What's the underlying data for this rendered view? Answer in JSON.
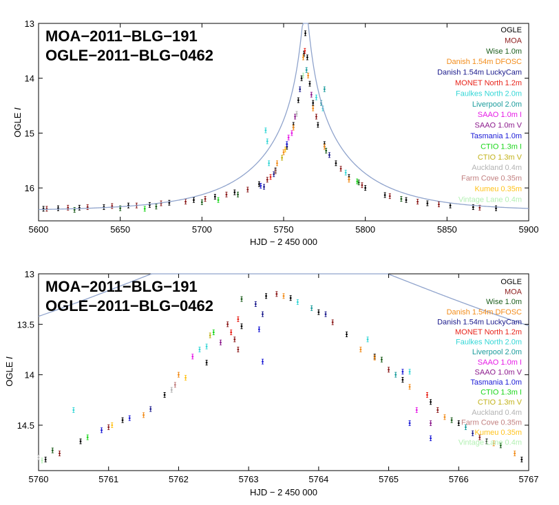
{
  "chart_data": [
    {
      "type": "scatter",
      "title_lines": [
        "MOA−2011−BLG−191",
        "OGLE−2011−BLG−0462"
      ],
      "xlabel": "HJD − 2 450 000",
      "ylabel_prefix": "OGLE ",
      "ylabel_italic": "I",
      "xlim": [
        5600,
        5900
      ],
      "ylim": [
        16.6,
        13.0
      ],
      "y_inverted": true,
      "xticks": [
        5600,
        5650,
        5700,
        5750,
        5800,
        5850,
        5900
      ],
      "xtick_labels": [
        "5600",
        "5650",
        "5700",
        "5750",
        "5800",
        "5850",
        "5900"
      ],
      "yticks": [
        13,
        14,
        15,
        16
      ],
      "ytick_labels": [
        "13",
        "14",
        "15",
        "16"
      ],
      "model": {
        "t0": 5763.3,
        "tE": 61.0,
        "u0": 0.0328,
        "baseline": 16.42,
        "color": "#8fa3cc"
      },
      "series_points": [
        {
          "name": "OGLE",
          "points": [
            [
              5603,
              16.38
            ],
            [
              5612,
              16.37
            ],
            [
              5625,
              16.36
            ],
            [
              5640,
              16.35
            ],
            [
              5655,
              16.32
            ],
            [
              5668,
              16.31
            ],
            [
              5680,
              16.27
            ],
            [
              5695,
              16.22
            ],
            [
              5708,
              16.16
            ],
            [
              5720,
              16.08
            ],
            [
              5735,
              15.93
            ],
            [
              5745,
              15.68
            ],
            [
              5752,
              15.25
            ],
            [
              5756,
              14.85
            ],
            [
              5759,
              14.4
            ],
            [
              5761,
              14.0
            ],
            [
              5762.5,
              13.55
            ],
            [
              5763.3,
              13.18
            ],
            [
              5764.5,
              13.62
            ],
            [
              5766,
              14.1
            ],
            [
              5768,
              14.45
            ],
            [
              5771,
              14.85
            ],
            [
              5775,
              15.2
            ],
            [
              5782,
              15.55
            ],
            [
              5790,
              15.8
            ],
            [
              5800,
              16.0
            ],
            [
              5812,
              16.13
            ],
            [
              5825,
              16.22
            ],
            [
              5838,
              16.28
            ],
            [
              5852,
              16.32
            ],
            [
              5866,
              16.35
            ],
            [
              5880,
              16.37
            ]
          ]
        },
        {
          "name": "MOA",
          "points": [
            [
              5605,
              16.38
            ],
            [
              5618,
              16.36
            ],
            [
              5630,
              16.35
            ],
            [
              5645,
              16.33
            ],
            [
              5660,
              16.32
            ],
            [
              5675,
              16.28
            ],
            [
              5690,
              16.25
            ],
            [
              5702,
              16.2
            ],
            [
              5715,
              16.12
            ],
            [
              5728,
              16.03
            ],
            [
              5740,
              15.85
            ],
            [
              5770,
              14.7
            ],
            [
              5785,
              15.65
            ],
            [
              5798,
              15.95
            ],
            [
              5815,
              16.15
            ],
            [
              5832,
              16.25
            ],
            [
              5845,
              16.3
            ],
            [
              5870,
              16.36
            ]
          ]
        },
        {
          "name": "Wise 1.0m",
          "points": [
            [
              5622,
              16.4
            ],
            [
              5650,
              16.37
            ],
            [
              5672,
              16.34
            ],
            [
              5700,
              16.26
            ],
            [
              5722,
              16.12
            ],
            [
              5776,
              15.32
            ],
            [
              5796,
              15.9
            ],
            [
              5822,
              16.2
            ]
          ]
        },
        {
          "name": "Danish 1.54m DFOSC",
          "points": [
            [
              5746,
              15.55
            ],
            [
              5750,
              15.35
            ],
            [
              5756,
              14.9
            ],
            [
              5762,
              13.62
            ],
            [
              5765,
              13.95
            ],
            [
              5768,
              14.55
            ],
            [
              5775,
              15.25
            ],
            [
              5790,
              15.85
            ]
          ]
        },
        {
          "name": "Danish 1.54m LuckyCam",
          "points": [
            [
              5738,
              15.98
            ],
            [
              5744,
              15.75
            ],
            [
              5760,
              14.2
            ],
            [
              5778,
              15.4
            ]
          ]
        },
        {
          "name": "MONET North 1.2m",
          "points": [
            [
              5742,
              15.8
            ],
            [
              5763,
              13.5
            ]
          ]
        },
        {
          "name": "Faulkes North 2.0m",
          "points": [
            [
              5739,
              14.95
            ],
            [
              5740,
              15.15
            ],
            [
              5741,
              15.55
            ],
            [
              5770,
              14.35
            ],
            [
              5774,
              14.55
            ],
            [
              5788,
              15.72
            ]
          ]
        },
        {
          "name": "Liverpool 2.0m",
          "points": [
            [
              5764,
              13.85
            ],
            [
              5775,
              14.2
            ],
            [
              5773,
              14.45
            ]
          ]
        },
        {
          "name": "SAAO 1.0m I",
          "points": [
            [
              5753,
              15.08
            ],
            [
              5755,
              15.0
            ]
          ]
        },
        {
          "name": "SAAO 1.0m V",
          "points": [
            [
              5757,
              14.7
            ],
            [
              5767,
              14.3
            ]
          ]
        },
        {
          "name": "Tasmania 1.0m",
          "points": [
            [
              5736,
              15.96
            ],
            [
              5752,
              15.2
            ]
          ]
        },
        {
          "name": "CTIO 1.3m I",
          "points": [
            [
              5665,
              16.38
            ],
            [
              5710,
              16.22
            ],
            [
              5795,
              15.88
            ]
          ]
        },
        {
          "name": "CTIO 1.3m V",
          "points": [
            [
              5749,
              15.45
            ]
          ]
        },
        {
          "name": "Auckland 0.4m",
          "points": [
            [
              5758,
              14.65
            ]
          ]
        },
        {
          "name": "Farm Cove 0.35m",
          "points": [
            [
              5745,
              15.7
            ]
          ]
        },
        {
          "name": "Kumeu 0.35m",
          "points": [
            [
              5751,
              15.3
            ]
          ]
        },
        {
          "name": "Vintage Lane 0.4m",
          "points": [
            [
              5762,
              13.95
            ]
          ]
        }
      ]
    },
    {
      "type": "scatter",
      "title_lines": [
        "MOA−2011−BLG−191",
        "OGLE−2011−BLG−0462"
      ],
      "xlabel": "HJD − 2 450 000",
      "ylabel_prefix": "OGLE ",
      "ylabel_italic": "I",
      "xlim": [
        5760,
        5767
      ],
      "ylim": [
        14.95,
        13.0
      ],
      "y_inverted": true,
      "xticks": [
        5760,
        5761,
        5762,
        5763,
        5764,
        5765,
        5766,
        5767
      ],
      "xtick_labels": [
        "5760",
        "5761",
        "5762",
        "5763",
        "5764",
        "5765",
        "5766",
        "5767"
      ],
      "yticks": [
        13,
        13.5,
        14,
        14.5
      ],
      "ytick_labels": [
        "13",
        "13.5",
        "14",
        "14.5"
      ],
      "model": {
        "t0": 5763.3,
        "tE": 61.0,
        "u0": 0.0328,
        "baseline": 16.42,
        "color": "#8fa3cc"
      },
      "series_points": [
        {
          "name": "OGLE",
          "points": [
            [
              5760.1,
              14.84
            ],
            [
              5760.6,
              14.66
            ],
            [
              5761.2,
              14.45
            ],
            [
              5761.8,
              14.2
            ],
            [
              5762.4,
              13.88
            ],
            [
              5762.9,
              13.52
            ],
            [
              5763.25,
              13.22
            ],
            [
              5763.6,
              13.24
            ],
            [
              5764.0,
              13.38
            ],
            [
              5764.4,
              13.6
            ],
            [
              5764.8,
              13.82
            ],
            [
              5765.2,
              14.05
            ],
            [
              5765.6,
              14.27
            ],
            [
              5766.0,
              14.48
            ],
            [
              5766.4,
              14.66
            ],
            [
              5766.9,
              14.84
            ]
          ]
        },
        {
          "name": "MOA",
          "points": [
            [
              5760.3,
              14.78
            ],
            [
              5761.0,
              14.52
            ],
            [
              5762.7,
              13.5
            ],
            [
              5762.8,
              13.65
            ],
            [
              5762.85,
              13.75
            ],
            [
              5763.4,
              13.2
            ],
            [
              5764.2,
              13.48
            ],
            [
              5765.0,
              13.95
            ],
            [
              5765.7,
              14.35
            ],
            [
              5766.3,
              14.62
            ]
          ]
        },
        {
          "name": "Wise 1.0m",
          "points": [
            [
              5760.2,
              14.75
            ],
            [
              5762.9,
              13.25
            ],
            [
              5764.9,
              13.85
            ],
            [
              5765.9,
              14.45
            ],
            [
              5766.6,
              14.7
            ]
          ]
        },
        {
          "name": "Danish 1.54m DFOSC",
          "points": [
            [
              5761.5,
              14.4
            ],
            [
              5762.0,
              14.0
            ],
            [
              5763.5,
              13.22
            ],
            [
              5764.6,
              13.75
            ],
            [
              5764.8,
              13.83
            ],
            [
              5765.3,
              14.12
            ],
            [
              5765.8,
              14.42
            ],
            [
              5766.5,
              14.68
            ],
            [
              5766.8,
              14.78
            ]
          ]
        },
        {
          "name": "Danish 1.54m LuckyCam",
          "points": [
            [
              5761.6,
              14.34
            ],
            [
              5763.1,
              13.3
            ],
            [
              5763.2,
              13.4
            ],
            [
              5764.1,
              13.4
            ],
            [
              5766.2,
              14.58
            ]
          ]
        },
        {
          "name": "MONET North 1.2m",
          "points": [
            [
              5762.75,
              13.58
            ],
            [
              5762.85,
              13.45
            ],
            [
              5765.55,
              14.2
            ]
          ]
        },
        {
          "name": "Faulkes North 2.0m",
          "points": [
            [
              5760.5,
              14.35
            ],
            [
              5762.3,
              13.75
            ],
            [
              5762.4,
              13.72
            ],
            [
              5763.7,
              13.28
            ],
            [
              5764.7,
              13.65
            ],
            [
              5765.3,
              13.97
            ]
          ]
        },
        {
          "name": "Liverpool 2.0m",
          "points": [
            [
              5763.9,
              13.34
            ],
            [
              5765.1,
              14.0
            ],
            [
              5766.1,
              14.52
            ]
          ]
        },
        {
          "name": "SAAO 1.0m I",
          "points": [
            [
              5762.2,
              13.82
            ],
            [
              5765.4,
              14.35
            ]
          ]
        },
        {
          "name": "SAAO 1.0m V",
          "points": [
            [
              5762.6,
              13.68
            ],
            [
              5765.6,
              14.48
            ]
          ]
        },
        {
          "name": "Tasmania 1.0m",
          "points": [
            [
              5760.9,
              14.55
            ],
            [
              5761.3,
              14.43
            ],
            [
              5763.15,
              13.55
            ],
            [
              5763.2,
              13.87
            ],
            [
              5765.2,
              13.97
            ],
            [
              5765.3,
              14.48
            ],
            [
              5765.6,
              14.63
            ]
          ]
        },
        {
          "name": "CTIO 1.3m I",
          "points": [
            [
              5760.7,
              14.62
            ],
            [
              5762.5,
              13.58
            ]
          ]
        },
        {
          "name": "CTIO 1.3m V",
          "points": [
            [
              5762.45,
              13.61
            ]
          ]
        },
        {
          "name": "Auckland 0.4m",
          "points": [
            [
              5761.9,
              14.15
            ],
            [
              5760.0,
              14.82
            ]
          ]
        },
        {
          "name": "Farm Cove 0.35m",
          "points": [
            [
              5761.95,
              14.1
            ]
          ]
        },
        {
          "name": "Kumeu 0.35m",
          "points": [
            [
              5761.05,
              14.5
            ],
            [
              5762.1,
              14.03
            ]
          ]
        },
        {
          "name": "Vintage Lane 0.4m",
          "points": [
            [
              5760.05,
              14.85
            ]
          ]
        }
      ]
    }
  ],
  "legend": [
    {
      "name": "OGLE",
      "color": "#000000"
    },
    {
      "name": "MOA",
      "color": "#8b1a1a"
    },
    {
      "name": "Wise 1.0m",
      "color": "#1a5c1a"
    },
    {
      "name": "Danish 1.54m DFOSC",
      "color": "#f28c1a"
    },
    {
      "name": "Danish 1.54m LuckyCam",
      "color": "#1a1a8c"
    },
    {
      "name": "MONET North 1.2m",
      "color": "#e8231a"
    },
    {
      "name": "Faulkes North 2.0m",
      "color": "#33d6d6"
    },
    {
      "name": "Liverpool 2.0m",
      "color": "#1a9c9c"
    },
    {
      "name": "SAAO 1.0m I",
      "color": "#e61ae6"
    },
    {
      "name": "SAAO 1.0m V",
      "color": "#8c1a8c"
    },
    {
      "name": "Tasmania 1.0m",
      "color": "#1a1ad6"
    },
    {
      "name": "CTIO 1.3m I",
      "color": "#1ad61a"
    },
    {
      "name": "CTIO 1.3m V",
      "color": "#c2b21a"
    },
    {
      "name": "Auckland 0.4m",
      "color": "#b3b3b3"
    },
    {
      "name": "Farm Cove 0.35m",
      "color": "#c28080"
    },
    {
      "name": "Kumeu 0.35m",
      "color": "#ffc21a"
    },
    {
      "name": "Vintage Lane 0.4m",
      "color": "#b3f0b3"
    }
  ]
}
